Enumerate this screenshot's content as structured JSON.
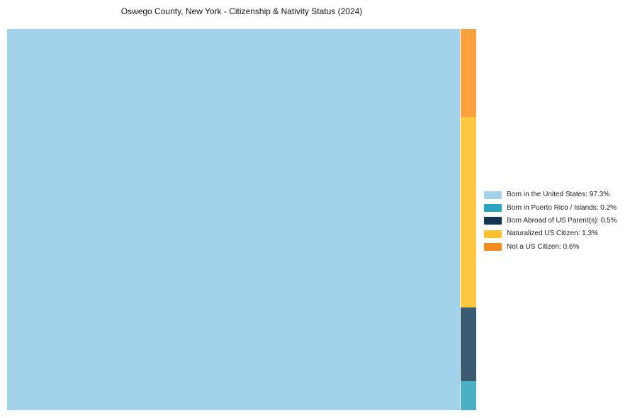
{
  "chart_data": {
    "type": "treemap",
    "title": "Oswego County, New York - Citizenship & Nativity Status (2024)",
    "legend_position": "center-right",
    "background_color": "#ffffff",
    "title_color": "#111111",
    "legend_text_color": "#1a1a1a",
    "categories": [
      "Born in the United States",
      "Born in Puerto Rico / Islands",
      "Born Abroad of US Parent(s)",
      "Naturalized US Citizen",
      "Not a US Citizen"
    ],
    "values": [
      97.3,
      0.2,
      0.5,
      1.3,
      0.6
    ],
    "segments": [
      {
        "label": "Born in the United States",
        "value_pct": 97.3,
        "legend_label": "Born in the United States: 97.3%",
        "color_legend": "#a3d1e8",
        "color_chart": "#a3d3ea"
      },
      {
        "label": "Born in Puerto Rico / Islands",
        "value_pct": 0.2,
        "legend_label": "Born in Puerto Rico / Islands: 0.2%",
        "color_legend": "#2ba5bf",
        "color_chart": "#4bb0c3"
      },
      {
        "label": "Born Abroad of US Parent(s)",
        "value_pct": 0.5,
        "legend_label": "Born Abroad of US Parent(s): 0.5%",
        "color_legend": "#14374f",
        "color_chart": "#3b5b72"
      },
      {
        "label": "Naturalized US Citizen",
        "value_pct": 1.3,
        "legend_label": "Naturalized US Citizen: 1.3%",
        "color_legend": "#fcc22d",
        "color_chart": "#fdc740"
      },
      {
        "label": "Not a US Citizen",
        "value_pct": 0.6,
        "legend_label": "Not a US Citizen: 0.6%",
        "color_legend": "#f68b1e",
        "color_chart": "#faa03f"
      }
    ]
  }
}
